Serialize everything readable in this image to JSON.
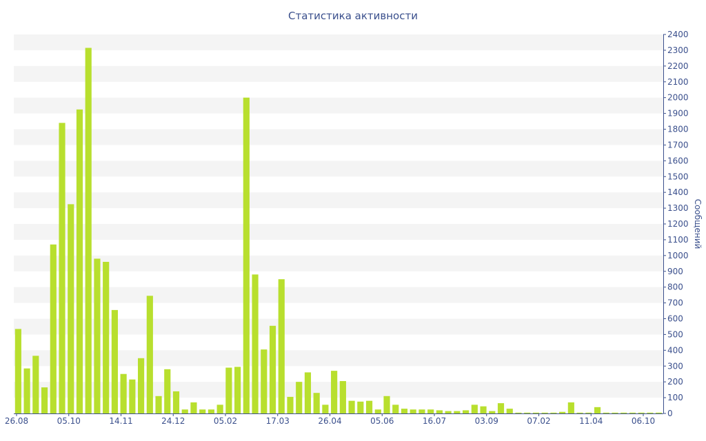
{
  "chart_data": {
    "type": "bar",
    "title": "Статистика активности",
    "ylabel": "Сообщений",
    "ylim": [
      0,
      2400
    ],
    "yticks": [
      0,
      100,
      200,
      300,
      400,
      500,
      600,
      700,
      800,
      900,
      1000,
      1100,
      1200,
      1300,
      1400,
      1500,
      1600,
      1700,
      1800,
      1900,
      2000,
      2100,
      2200,
      2300,
      2400
    ],
    "xtick_labels": [
      "26.08",
      "05.10",
      "14.11",
      "24.12",
      "05.02",
      "17.03",
      "26.04",
      "05.06",
      "16.07",
      "03.09",
      "07.02",
      "11.04",
      "06.10"
    ],
    "values": [
      535,
      285,
      365,
      165,
      1070,
      1840,
      1325,
      1925,
      2315,
      980,
      960,
      655,
      250,
      215,
      350,
      745,
      110,
      280,
      140,
      25,
      70,
      25,
      25,
      55,
      290,
      295,
      2000,
      880,
      405,
      555,
      850,
      105,
      200,
      260,
      130,
      55,
      270,
      205,
      80,
      75,
      80,
      25,
      110,
      55,
      30,
      25,
      25,
      25,
      20,
      15,
      15,
      20,
      55,
      45,
      15,
      65,
      30,
      5,
      5,
      5,
      5,
      5,
      10,
      70,
      5,
      5,
      40,
      5,
      5,
      5,
      5,
      5,
      5,
      5
    ],
    "colors": {
      "bar": "#b8df2e",
      "axis": "#3a4f8c",
      "band": "#f4f4f4"
    },
    "grid": true
  }
}
